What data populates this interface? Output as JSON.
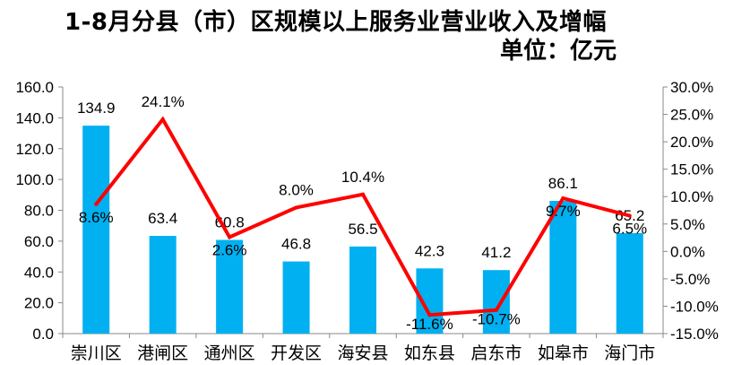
{
  "chart_data": {
    "type": "bar",
    "title": "1-8月分县（市）区规模以上服务业营业收入及增幅",
    "subtitle": "单位：亿元",
    "categories": [
      "崇川区",
      "港闸区",
      "通州区",
      "开发区",
      "海安县",
      "如东县",
      "启东市",
      "如皋市",
      "海门市"
    ],
    "series": [
      {
        "type": "bar",
        "axis": "left",
        "values": [
          134.9,
          63.4,
          60.8,
          46.8,
          56.5,
          42.3,
          41.2,
          86.1,
          65.2
        ],
        "labels": [
          "134.9",
          "63.4",
          "60.8",
          "46.8",
          "56.5",
          "42.3",
          "41.2",
          "86.1",
          "65.2"
        ],
        "color": "#00b0f0"
      },
      {
        "type": "line",
        "axis": "right",
        "values": [
          8.6,
          24.1,
          2.6,
          8.0,
          10.4,
          -11.6,
          -10.7,
          9.7,
          6.5
        ],
        "labels": [
          "8.6%",
          "24.1%",
          "2.6%",
          "8.0%",
          "10.4%",
          "-11.6%",
          "-10.7%",
          "9.7%",
          "6.5%"
        ],
        "color": "#ff0000"
      }
    ],
    "y_left": {
      "min": 0,
      "max": 160,
      "step": 20,
      "ticks": [
        "0.0",
        "20.0",
        "40.0",
        "60.0",
        "80.0",
        "100.0",
        "120.0",
        "140.0",
        "160.0"
      ]
    },
    "y_right": {
      "min": -15,
      "max": 30,
      "step": 5,
      "ticks": [
        "-15.0%",
        "-10.0%",
        "-5.0%",
        "0.0%",
        "5.0%",
        "10.0%",
        "15.0%",
        "20.0%",
        "25.0%",
        "30.0%"
      ]
    },
    "grid": false,
    "legend": "none"
  }
}
